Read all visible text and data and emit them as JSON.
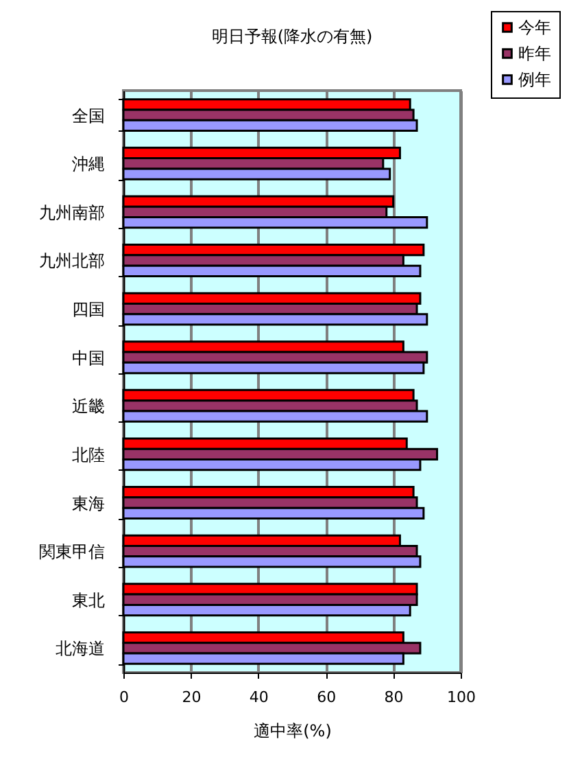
{
  "chart_data": {
    "type": "bar",
    "orientation": "horizontal",
    "title": "明日予報(降水の有無)",
    "xlabel": "適中率(%)",
    "categories": [
      "全国",
      "沖縄",
      "九州南部",
      "九州北部",
      "四国",
      "中国",
      "近畿",
      "北陸",
      "東海",
      "関東甲信",
      "東北",
      "北海道"
    ],
    "series": [
      {
        "name": "今年",
        "color": "#ff0000",
        "values": [
          85,
          82,
          80,
          89,
          88,
          83,
          86,
          84,
          86,
          82,
          87,
          83
        ]
      },
      {
        "name": "昨年",
        "color": "#993366",
        "values": [
          86,
          77,
          78,
          83,
          87,
          90,
          87,
          93,
          87,
          87,
          87,
          88
        ]
      },
      {
        "name": "例年",
        "color": "#9999ff",
        "values": [
          87,
          79,
          90,
          88,
          90,
          89,
          90,
          88,
          89,
          88,
          85,
          83
        ]
      }
    ],
    "xlim": [
      0,
      100
    ],
    "xticks": [
      0,
      20,
      40,
      60,
      80,
      100
    ],
    "grid": "x",
    "legend": "top right"
  }
}
